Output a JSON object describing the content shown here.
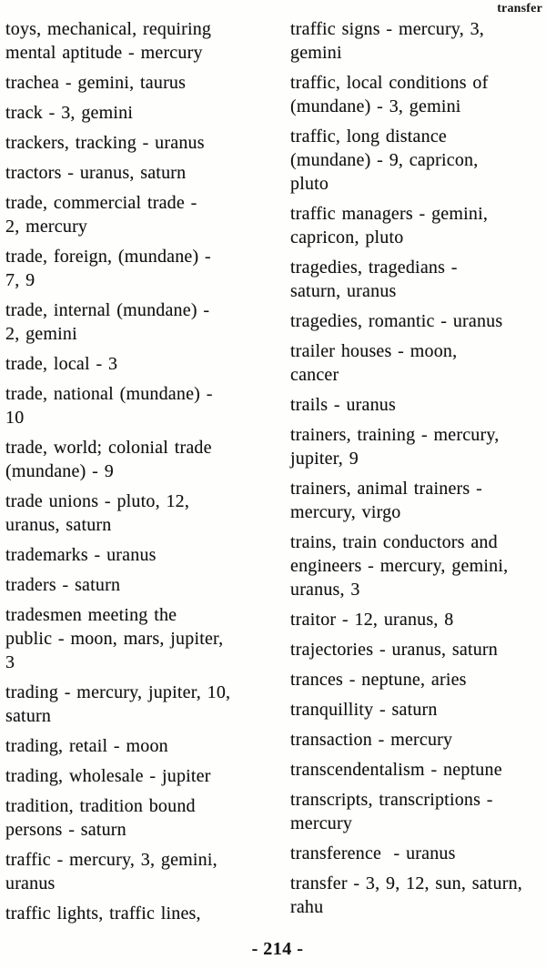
{
  "page": {
    "running_head": "transfer",
    "page_number": "- 214 -"
  },
  "columns": {
    "left": [
      "toys, mechanical, requiring\nmental aptitude - mercury",
      "trachea - gemini, taurus",
      "track - 3, gemini",
      "trackers, tracking - uranus",
      "tractors - uranus, saturn",
      "trade, commercial trade -\n2, mercury",
      "trade, foreign, (mundane) -\n7, 9",
      "trade, internal (mundane) -\n2, gemini",
      "trade, local - 3",
      "trade, national (mundane) -\n10",
      "trade, world; colonial trade\n(mundane) - 9",
      "trade unions - pluto, 12,\nuranus, saturn",
      "trademarks - uranus",
      "traders - saturn",
      "tradesmen meeting the\npublic - moon, mars, jupiter,\n3",
      "trading - mercury, jupiter, 10,\nsaturn",
      "trading, retail - moon",
      "trading, wholesale - jupiter",
      "tradition, tradition bound\npersons - saturn",
      "traffic - mercury, 3, gemini,\nuranus",
      "traffic lights, traffic lines,"
    ],
    "right": [
      "traffic signs - mercury, 3,\ngemini",
      "traffic, local conditions of\n(mundane) - 3, gemini",
      "traffic, long distance\n(mundane) - 9, capricon,\npluto",
      "traffic managers - gemini,\ncapricon, pluto",
      "tragedies, tragedians -\nsaturn, uranus",
      "tragedies, romantic - uranus",
      "trailer houses - moon,\ncancer",
      "trails - uranus",
      "trainers, training - mercury,\njupiter, 9",
      "trainers, animal trainers -\nmercury, virgo",
      "trains, train conductors and\nengineers - mercury, gemini,\nuranus, 3",
      "traitor - 12, uranus, 8",
      "trajectories - uranus, saturn",
      "trances - neptune, aries",
      "tranquillity - saturn",
      "transaction - mercury",
      "transcendentalism - neptune",
      "transcripts, transcriptions -\nmercury",
      "transference  - uranus",
      "transfer - 3, 9, 12, sun, saturn,\nrahu"
    ]
  }
}
